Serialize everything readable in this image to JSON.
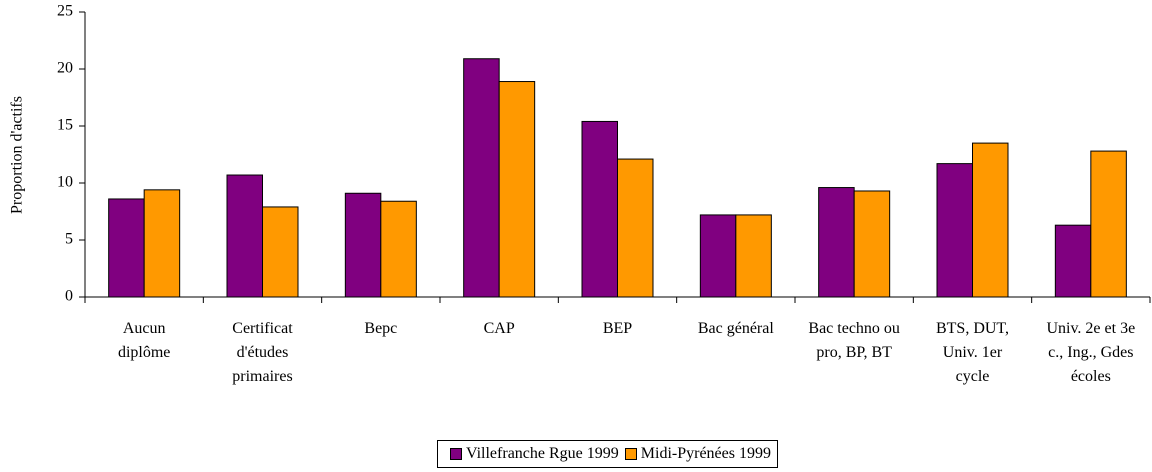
{
  "chart_data": {
    "type": "bar",
    "y_label": "Proportion d'actifs",
    "categories": [
      "Aucun diplôme",
      "Certificat d'études primaires",
      "Bepc",
      "CAP",
      "BEP",
      "Bac général",
      "Bac techno ou pro, BP, BT",
      "BTS, DUT, Univ. 1er cycle",
      "Univ. 2e et 3e c., Ing., Gdes écoles"
    ],
    "series": [
      {
        "name": "Villefranche Rgue 1999",
        "color": "#800080",
        "values": [
          8.6,
          10.7,
          9.1,
          20.9,
          15.4,
          7.2,
          9.6,
          11.7,
          6.3
        ]
      },
      {
        "name": "Midi-Pyrénées 1999",
        "color": "#ff9900",
        "values": [
          9.4,
          7.9,
          8.4,
          18.9,
          12.1,
          7.2,
          9.3,
          13.5,
          12.8
        ]
      }
    ],
    "ylim": [
      0,
      25
    ],
    "yticks": [
      0,
      5,
      10,
      15,
      20,
      25
    ],
    "grid": false,
    "legend": "bottom"
  }
}
